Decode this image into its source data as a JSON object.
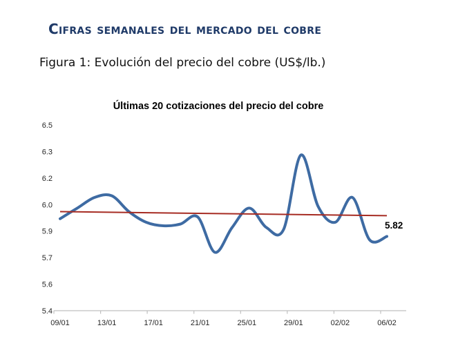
{
  "page": {
    "heading": "Cifras semanales del mercado del cobre",
    "figure_caption": "Figura 1: Evolución del precio del cobre (US$/lb.)"
  },
  "chart_data": {
    "type": "line",
    "title": "Últimas 20 cotizaciones del precio del cobre",
    "x_tick_labels": [
      "09/01",
      "13/01",
      "17/01",
      "21/01",
      "25/01",
      "29/01",
      "02/02",
      "06/02"
    ],
    "y_tick_labels": [
      "6.5",
      "6.3",
      "6.2",
      "6.0",
      "5.9",
      "5.7",
      "5.6",
      "5.4"
    ],
    "y_axis_min": 5.4,
    "y_axis_max": 6.45,
    "grid": false,
    "legend": "none",
    "series": [
      {
        "name": "precio-del-cobre",
        "style": "smooth",
        "color": "#3E6BA3",
        "stroke_width": 4,
        "values": [
          5.92,
          5.98,
          6.04,
          6.05,
          5.96,
          5.9,
          5.88,
          5.89,
          5.93,
          5.73,
          5.87,
          5.98,
          5.87,
          5.86,
          6.28,
          5.99,
          5.9,
          6.04,
          5.8,
          5.82
        ]
      },
      {
        "name": "tendencia-lineal",
        "style": "straight",
        "color": "#A62B22",
        "stroke_width": 2,
        "values": [
          5.96,
          5.937
        ]
      }
    ],
    "last_value_label": "5.82",
    "axis_color": "#BFBFBF",
    "label_color": "#262626"
  },
  "colors": {
    "heading_navy": "#1F3A68",
    "background": "#FFFFFF",
    "blue_line": "#3E6BA3",
    "red_trend": "#A62B22"
  }
}
